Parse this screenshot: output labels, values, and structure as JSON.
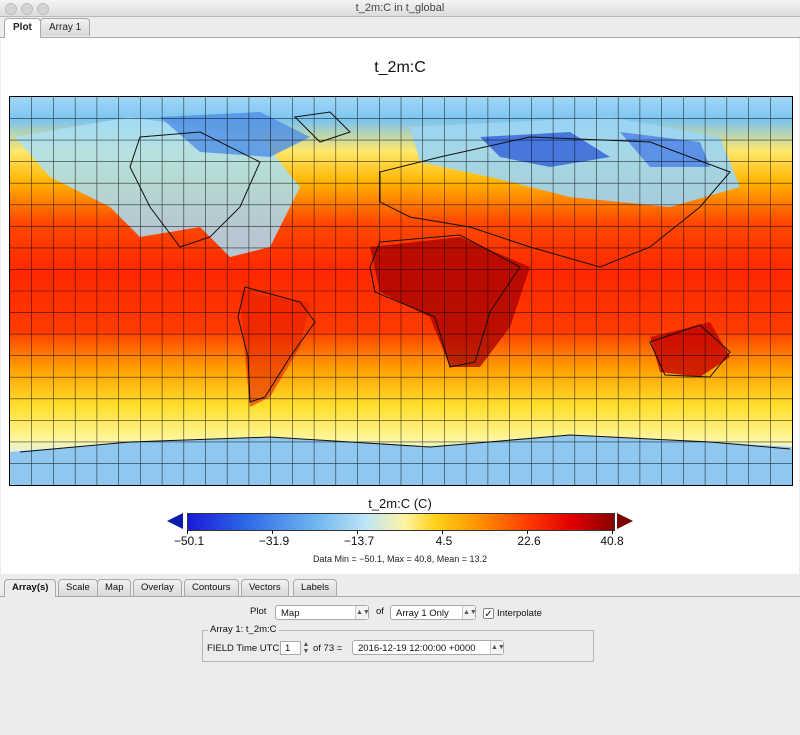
{
  "window": {
    "title": "t_2m:C in t_global"
  },
  "tabs": [
    {
      "label": "Plot",
      "active": true
    },
    {
      "label": "Array 1",
      "active": false
    }
  ],
  "plot": {
    "title": "t_2m:C",
    "colorbar": {
      "title": "t_2m:C (C)",
      "ticks": [
        "−50.1",
        "−31.9",
        "−13.7",
        "4.5",
        "22.6",
        "40.8"
      ],
      "min": -50.1,
      "max": 40.8
    },
    "stats": "Data Min = −50.1, Max = 40.8, Mean = 13.2"
  },
  "control_tabs": [
    "Array(s)",
    "Scale",
    "Map",
    "Overlay",
    "Contours",
    "Vectors",
    "Labels"
  ],
  "controls": {
    "plot_label": "Plot",
    "plot_type": "Map",
    "of_label": "of",
    "array_select": "Array 1 Only",
    "interpolate_label": "Interpolate",
    "interpolate_checked": true,
    "array_group_title": "Array 1: t_2m:C",
    "field_time_label": "FIELD Time UTC:",
    "time_index": "1",
    "time_total": "of 73 =",
    "time_value": "2016-12-19 12:00:00 +0000"
  },
  "colors": {
    "tab_active": "#ffffff",
    "cmap_low": "#1a1ad8",
    "cmap_high": "#8a0000"
  }
}
